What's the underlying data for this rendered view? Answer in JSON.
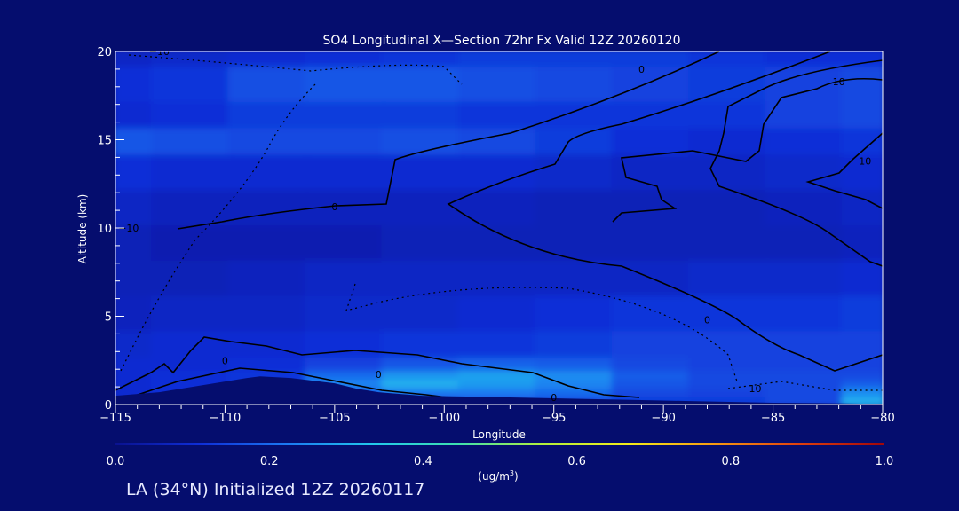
{
  "footer": {
    "note": "LA (34°N) Initialized 12Z 20260117"
  },
  "chart_data": {
    "type": "heatmap",
    "title": "SO4 Longitudinal X—Section 72hr  Fx Valid 12Z 20260120",
    "xlabel": "Longitude",
    "ylabel": "Altitude (km)",
    "xlim": [
      -115,
      -80
    ],
    "ylim": [
      0,
      20
    ],
    "x_ticks": [
      -115,
      -110,
      -105,
      -100,
      -95,
      -90,
      -85,
      -80
    ],
    "x_tick_labels": [
      "−115",
      "−110",
      "−105",
      "−100",
      "−95",
      "−90",
      "−85",
      "−80"
    ],
    "y_ticks": [
      0,
      5,
      10,
      15,
      20
    ],
    "y_tick_labels": [
      "0",
      "5",
      "10",
      "15",
      "20"
    ],
    "colorbar": {
      "label": "(ug/m³)",
      "min": 0.0,
      "max": 1.0,
      "ticks": [
        "0.0",
        "0.2",
        "0.4",
        "0.6",
        "0.8",
        "1.0"
      ],
      "colors": [
        "#0a1290",
        "#0f2fd8",
        "#1c79f2",
        "#22c7ec",
        "#3ee0b0",
        "#b3f03c",
        "#f4ec1a",
        "#f79b12",
        "#e0400d",
        "#a0060a"
      ]
    },
    "field": {
      "rows_altitude_km": [
        20,
        18,
        16,
        15,
        13,
        11,
        9,
        7,
        5,
        3,
        2,
        1.5,
        1,
        0.5,
        0
      ],
      "cols_longitude": [
        -115,
        -111.5,
        -108,
        -104.5,
        -101,
        -97.5,
        -94,
        -90.5,
        -87,
        -83.5,
        -80
      ],
      "values_ugm3": [
        [
          0.08,
          0.09,
          0.1,
          0.11,
          0.12,
          0.13,
          0.13,
          0.13,
          0.12,
          0.11,
          0.11
        ],
        [
          0.11,
          0.12,
          0.16,
          0.17,
          0.17,
          0.16,
          0.15,
          0.14,
          0.13,
          0.14,
          0.15
        ],
        [
          0.1,
          0.11,
          0.13,
          0.13,
          0.13,
          0.12,
          0.12,
          0.12,
          0.12,
          0.14,
          0.15
        ],
        [
          0.17,
          0.16,
          0.15,
          0.15,
          0.16,
          0.15,
          0.13,
          0.11,
          0.1,
          0.11,
          0.12
        ],
        [
          0.11,
          0.1,
          0.1,
          0.1,
          0.1,
          0.1,
          0.09,
          0.08,
          0.08,
          0.09,
          0.1
        ],
        [
          0.08,
          0.07,
          0.07,
          0.07,
          0.07,
          0.07,
          0.06,
          0.06,
          0.06,
          0.07,
          0.08
        ],
        [
          0.06,
          0.05,
          0.05,
          0.05,
          0.06,
          0.06,
          0.06,
          0.06,
          0.06,
          0.06,
          0.07
        ],
        [
          0.06,
          0.06,
          0.07,
          0.08,
          0.08,
          0.08,
          0.08,
          0.08,
          0.09,
          0.09,
          0.1
        ],
        [
          0.07,
          0.08,
          0.08,
          0.09,
          0.09,
          0.1,
          0.11,
          0.12,
          0.12,
          0.12,
          0.13
        ],
        [
          0.09,
          0.1,
          0.1,
          0.11,
          0.12,
          0.12,
          0.13,
          0.14,
          0.14,
          0.14,
          0.14
        ],
        [
          0.1,
          0.1,
          0.11,
          0.14,
          0.17,
          0.19,
          0.18,
          0.15,
          0.14,
          0.14,
          0.14
        ],
        [
          0.1,
          0.11,
          0.12,
          0.2,
          0.26,
          0.28,
          0.25,
          0.18,
          0.15,
          0.15,
          0.15
        ],
        [
          0.1,
          0.11,
          0.12,
          0.24,
          0.3,
          0.27,
          0.24,
          0.17,
          0.15,
          0.15,
          0.18
        ],
        [
          0.1,
          0.11,
          0.12,
          0.18,
          0.22,
          0.22,
          0.2,
          0.15,
          0.14,
          0.15,
          0.25
        ],
        [
          0.09,
          0.1,
          0.11,
          0.13,
          0.15,
          0.16,
          0.15,
          0.13,
          0.13,
          0.15,
          0.3
        ]
      ]
    },
    "terrain": {
      "longitude": [
        -115,
        -113,
        -111.5,
        -110,
        -109,
        -108.4,
        -107,
        -105,
        -104,
        -103,
        -101,
        -99,
        -97,
        -95,
        -93,
        -91,
        -89,
        -87,
        -85,
        -83,
        -81,
        -80
      ],
      "altitude_km": [
        0.5,
        0.7,
        1.0,
        1.3,
        1.5,
        1.6,
        1.5,
        1.2,
        0.9,
        0.7,
        0.5,
        0.45,
        0.4,
        0.35,
        0.3,
        0.25,
        0.2,
        0.15,
        0.1,
        0.08,
        0.05,
        0.05
      ]
    },
    "contour_labels": [
      {
        "text": "0",
        "lon": -91,
        "alt": 19.0
      },
      {
        "text": "10",
        "lon": -82,
        "alt": 18.3
      },
      {
        "text": "10",
        "lon": -80.8,
        "alt": 13.8
      },
      {
        "text": "0",
        "lon": -105,
        "alt": 11.2
      },
      {
        "text": "0",
        "lon": -88,
        "alt": 4.8
      },
      {
        "text": "0",
        "lon": -110,
        "alt": 2.5
      },
      {
        "text": "0",
        "lon": -103,
        "alt": 1.7
      },
      {
        "text": "0",
        "lon": -95,
        "alt": 0.4
      },
      {
        "text": "−10",
        "lon": -86,
        "alt": 0.9
      },
      {
        "text": "−10",
        "lon": -113,
        "alt": 20.0
      },
      {
        "text": "−10",
        "lon": -114.4,
        "alt": 10.0
      }
    ]
  }
}
